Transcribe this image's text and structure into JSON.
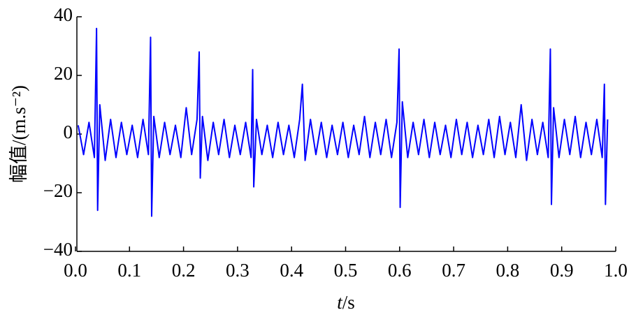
{
  "chart_data": {
    "type": "line",
    "xlabel_var": "t",
    "xlabel_unit": "/s",
    "ylabel": "幅值/(m.s⁻²)",
    "xlim": [
      0,
      1
    ],
    "ylim": [
      -40,
      40
    ],
    "xticks": [
      {
        "value": 0,
        "label": "0.0"
      },
      0.1,
      0.2,
      0.3,
      0.4,
      0.5,
      0.6,
      0.7,
      0.8,
      0.9,
      {
        "value": 1,
        "label": "1.0"
      }
    ],
    "yticks": [
      {
        "value": -40,
        "label": "−40"
      },
      {
        "value": -20,
        "label": "−20"
      },
      0,
      20,
      40
    ],
    "grid": false,
    "series": [
      {
        "color": "#0000ff",
        "x": [
          0.005,
          0.015,
          0.025,
          0.035,
          0.039,
          0.041,
          0.045,
          0.055,
          0.065,
          0.075,
          0.085,
          0.095,
          0.105,
          0.115,
          0.125,
          0.135,
          0.139,
          0.141,
          0.145,
          0.155,
          0.165,
          0.175,
          0.185,
          0.195,
          0.205,
          0.215,
          0.225,
          0.229,
          0.231,
          0.235,
          0.245,
          0.255,
          0.265,
          0.275,
          0.285,
          0.295,
          0.305,
          0.315,
          0.325,
          0.328,
          0.33,
          0.335,
          0.345,
          0.355,
          0.365,
          0.375,
          0.385,
          0.395,
          0.405,
          0.415,
          0.42,
          0.425,
          0.435,
          0.445,
          0.455,
          0.465,
          0.475,
          0.485,
          0.495,
          0.505,
          0.515,
          0.525,
          0.535,
          0.545,
          0.555,
          0.565,
          0.575,
          0.585,
          0.595,
          0.599,
          0.601,
          0.605,
          0.615,
          0.625,
          0.635,
          0.645,
          0.655,
          0.665,
          0.675,
          0.685,
          0.695,
          0.705,
          0.715,
          0.725,
          0.735,
          0.745,
          0.755,
          0.765,
          0.775,
          0.785,
          0.795,
          0.805,
          0.815,
          0.825,
          0.835,
          0.845,
          0.855,
          0.865,
          0.875,
          0.879,
          0.881,
          0.885,
          0.895,
          0.905,
          0.915,
          0.925,
          0.935,
          0.945,
          0.955,
          0.965,
          0.975,
          0.979,
          0.981,
          0.985
        ],
        "values": [
          3,
          -7,
          4,
          -8,
          36,
          -26,
          10,
          -9,
          5,
          -8,
          4,
          -7,
          3,
          -8,
          5,
          -7,
          33,
          -28,
          6,
          -8,
          4,
          -7,
          3,
          -8,
          9,
          -7,
          5,
          28,
          -15,
          6,
          -9,
          4,
          -7,
          5,
          -8,
          3,
          -7,
          4,
          -8,
          22,
          -18,
          5,
          -7,
          3,
          -8,
          4,
          -7,
          3,
          -8,
          5,
          17,
          -9,
          5,
          -7,
          4,
          -8,
          3,
          -7,
          4,
          -8,
          3,
          -7,
          6,
          -8,
          4,
          -7,
          5,
          -8,
          4,
          29,
          -25,
          11,
          -8,
          4,
          -7,
          5,
          -8,
          4,
          -7,
          3,
          -8,
          5,
          -7,
          4,
          -8,
          3,
          -7,
          5,
          -8,
          6,
          -7,
          4,
          -8,
          10,
          -9,
          5,
          -7,
          4,
          -8,
          29,
          -24,
          9,
          -8,
          5,
          -7,
          6,
          -8,
          4,
          -7,
          5,
          -8,
          17,
          -24,
          5
        ]
      }
    ]
  }
}
